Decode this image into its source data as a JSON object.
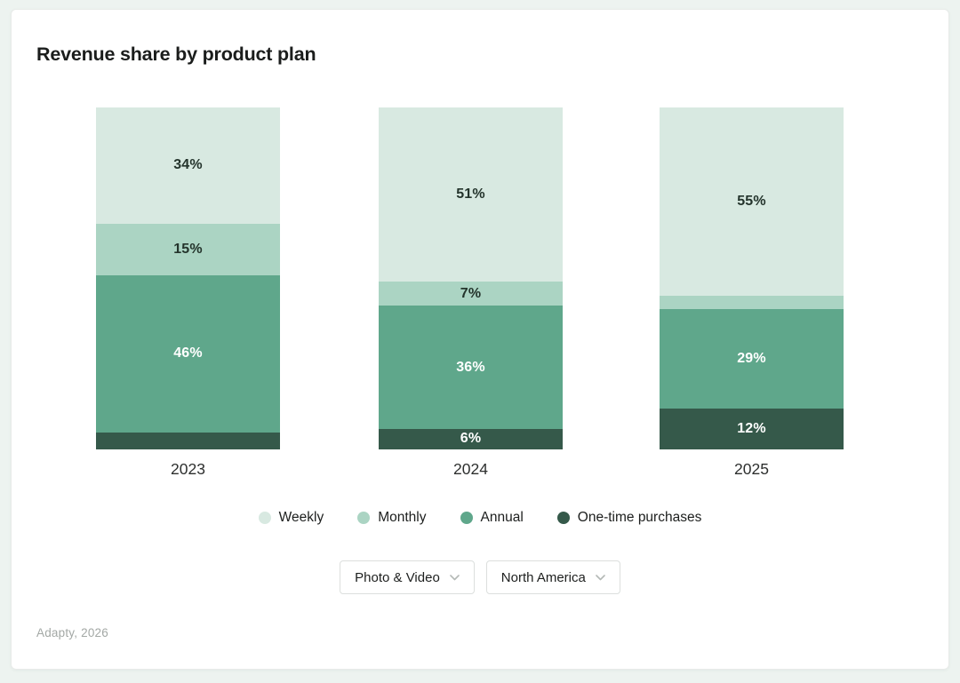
{
  "card": {
    "title": "Revenue share by product plan",
    "source": "Adapty, 2026"
  },
  "chart_data": {
    "type": "bar",
    "variant": "stacked-100-percent",
    "unit": "percent",
    "title": "Revenue share by product plan",
    "categories": [
      "2023",
      "2024",
      "2025"
    ],
    "series": [
      {
        "name": "Weekly",
        "color": "#d8e9e1",
        "values": [
          34,
          51,
          55
        ],
        "labels": [
          "34%",
          "51%",
          "55%"
        ],
        "label_color": "#24342c"
      },
      {
        "name": "Monthly",
        "color": "#abd4c3",
        "values": [
          15,
          7,
          4
        ],
        "labels": [
          "15%",
          "7%",
          ""
        ],
        "label_color": "#24342c"
      },
      {
        "name": "Annual",
        "color": "#5fa78b",
        "values": [
          46,
          36,
          29
        ],
        "labels": [
          "46%",
          "36%",
          "29%"
        ],
        "label_color": "#ffffff"
      },
      {
        "name": "One-time purchases",
        "color": "#35594a",
        "values": [
          5,
          6,
          12
        ],
        "labels": [
          "",
          "6%",
          "12%"
        ],
        "label_color": "#ffffff"
      }
    ],
    "ylim": [
      0,
      100
    ],
    "grid": false,
    "legend_position": "bottom"
  },
  "filters": [
    {
      "value": "Photo & Video"
    },
    {
      "value": "North America"
    }
  ],
  "colors": {
    "page_background": "#edf3f0",
    "card_background": "#ffffff",
    "card_border": "#e8ebe9",
    "dropdown_border": "#dcdfdd",
    "source_text": "#a3a8a5",
    "chevron": "#b4b9b6",
    "year_label": "#2d2f2e"
  }
}
